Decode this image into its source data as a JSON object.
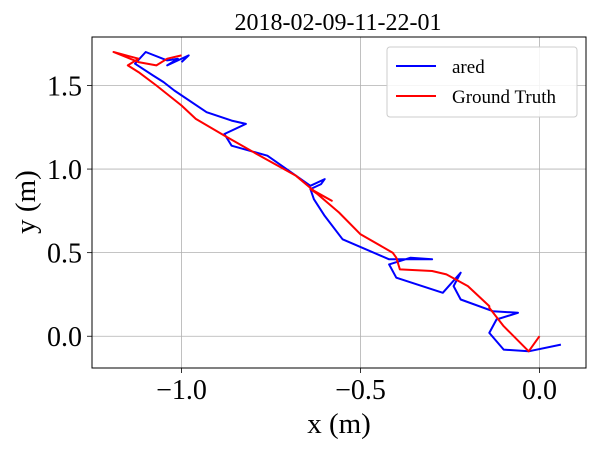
{
  "chart_data": {
    "type": "line",
    "title": "2018-02-09-11-22-01",
    "xlabel": "x (m)",
    "ylabel": "y (m)",
    "xlim": [
      -1.25,
      0.13
    ],
    "ylim": [
      -0.19,
      1.79
    ],
    "xticks": [
      -1.0,
      -0.5,
      0.0
    ],
    "xtick_labels": [
      "−1.0",
      "−0.5",
      "0.0"
    ],
    "yticks": [
      0.0,
      0.5,
      1.0,
      1.5
    ],
    "ytick_labels": [
      "0.0",
      "0.5",
      "1.0",
      "1.5"
    ],
    "grid": true,
    "legend_position": "top-right",
    "series": [
      {
        "name": "ared",
        "color": "#0000ff",
        "x": [
          0.06,
          -0.03,
          -0.1,
          -0.14,
          -0.12,
          -0.06,
          -0.13,
          -0.22,
          -0.24,
          -0.22,
          -0.27,
          -0.4,
          -0.42,
          -0.36,
          -0.3,
          -0.42,
          -0.55,
          -0.6,
          -0.63,
          -0.64,
          -0.61,
          -0.6,
          -0.64,
          -0.76,
          -0.86,
          -0.88,
          -0.82,
          -0.86,
          -0.93,
          -1.02,
          -1.05,
          -1.08,
          -1.13,
          -1.1,
          -1.04,
          -1.01,
          -1.04,
          -0.98,
          -1.0
        ],
        "y": [
          -0.05,
          -0.09,
          -0.08,
          0.02,
          0.1,
          0.14,
          0.15,
          0.22,
          0.3,
          0.38,
          0.26,
          0.35,
          0.43,
          0.47,
          0.46,
          0.46,
          0.58,
          0.72,
          0.82,
          0.88,
          0.91,
          0.94,
          0.9,
          1.08,
          1.14,
          1.21,
          1.27,
          1.29,
          1.34,
          1.47,
          1.52,
          1.56,
          1.63,
          1.7,
          1.65,
          1.66,
          1.62,
          1.68,
          1.64
        ]
      },
      {
        "name": "Ground Truth",
        "color": "#ff0000",
        "x": [
          0.0,
          -0.03,
          -0.1,
          -0.14,
          -0.14,
          -0.2,
          -0.26,
          -0.3,
          -0.39,
          -0.4,
          -0.41,
          -0.5,
          -0.56,
          -0.62,
          -0.64,
          -0.58,
          -0.63,
          -0.68,
          -0.79,
          -0.88,
          -0.96,
          -1.0,
          -1.07,
          -1.12,
          -1.15,
          -1.12,
          -1.19,
          -1.12,
          -1.07,
          -1.04,
          -1.0
        ],
        "y": [
          0.0,
          -0.09,
          0.06,
          0.17,
          0.18,
          0.3,
          0.37,
          0.39,
          0.4,
          0.47,
          0.5,
          0.61,
          0.74,
          0.85,
          0.88,
          0.81,
          0.87,
          0.96,
          1.09,
          1.2,
          1.3,
          1.38,
          1.5,
          1.58,
          1.62,
          1.66,
          1.7,
          1.64,
          1.62,
          1.66,
          1.68
        ]
      }
    ]
  }
}
